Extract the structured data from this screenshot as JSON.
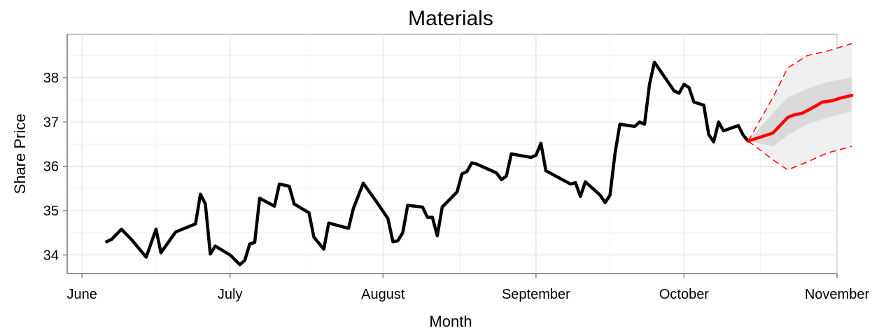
{
  "chart_data": {
    "type": "line",
    "title": "Materials",
    "xlabel": "Month",
    "ylabel": "Share Price",
    "x_axis": {
      "type": "date",
      "range": [
        "2024-05-29",
        "2024-11-01"
      ],
      "ticks": [
        {
          "date": "2024-06-01",
          "label": "June"
        },
        {
          "date": "2024-07-01",
          "label": "July"
        },
        {
          "date": "2024-08-01",
          "label": "August"
        },
        {
          "date": "2024-09-01",
          "label": "September"
        },
        {
          "date": "2024-10-01",
          "label": "October"
        },
        {
          "date": "2024-11-01",
          "label": "November"
        }
      ]
    },
    "y_axis": {
      "range": [
        33.58,
        38.98
      ],
      "ticks": [
        34,
        35,
        36,
        37,
        38
      ]
    },
    "grid": true,
    "colors": {
      "history": "#000000",
      "forecast": "#ff0000",
      "inner_band": "#d9d9d9",
      "outer_band": "#efefef"
    },
    "series": [
      {
        "role": "history",
        "points": [
          [
            "2024-06-06",
            34.3
          ],
          [
            "2024-06-07",
            34.35
          ],
          [
            "2024-06-09",
            34.58
          ],
          [
            "2024-06-11",
            34.35
          ],
          [
            "2024-06-14",
            33.95
          ],
          [
            "2024-06-16",
            34.58
          ],
          [
            "2024-06-17",
            34.05
          ],
          [
            "2024-06-20",
            34.52
          ],
          [
            "2024-06-24",
            34.7
          ],
          [
            "2024-06-25",
            35.37
          ],
          [
            "2024-06-26",
            35.15
          ],
          [
            "2024-06-27",
            34.02
          ],
          [
            "2024-06-28",
            34.2
          ],
          [
            "2024-07-01",
            34.0
          ],
          [
            "2024-07-03",
            33.78
          ],
          [
            "2024-07-04",
            33.88
          ],
          [
            "2024-07-05",
            34.25
          ],
          [
            "2024-07-06",
            34.28
          ],
          [
            "2024-07-07",
            35.28
          ],
          [
            "2024-07-10",
            35.1
          ],
          [
            "2024-07-11",
            35.6
          ],
          [
            "2024-07-13",
            35.55
          ],
          [
            "2024-07-14",
            35.15
          ],
          [
            "2024-07-17",
            34.95
          ],
          [
            "2024-07-18",
            34.4
          ],
          [
            "2024-07-20",
            34.13
          ],
          [
            "2024-07-21",
            34.72
          ],
          [
            "2024-07-25",
            34.6
          ],
          [
            "2024-07-26",
            35.05
          ],
          [
            "2024-07-28",
            35.62
          ],
          [
            "2024-07-31",
            35.15
          ],
          [
            "2024-08-02",
            34.82
          ],
          [
            "2024-08-03",
            34.3
          ],
          [
            "2024-08-04",
            34.32
          ],
          [
            "2024-08-05",
            34.5
          ],
          [
            "2024-08-06",
            35.12
          ],
          [
            "2024-08-09",
            35.08
          ],
          [
            "2024-08-10",
            34.85
          ],
          [
            "2024-08-11",
            34.85
          ],
          [
            "2024-08-12",
            34.43
          ],
          [
            "2024-08-13",
            35.08
          ],
          [
            "2024-08-16",
            35.42
          ],
          [
            "2024-08-17",
            35.83
          ],
          [
            "2024-08-18",
            35.88
          ],
          [
            "2024-08-19",
            36.08
          ],
          [
            "2024-08-20",
            36.05
          ],
          [
            "2024-08-24",
            35.85
          ],
          [
            "2024-08-25",
            35.7
          ],
          [
            "2024-08-26",
            35.78
          ],
          [
            "2024-08-27",
            36.28
          ],
          [
            "2024-08-31",
            36.2
          ],
          [
            "2024-09-01",
            36.25
          ],
          [
            "2024-09-02",
            36.52
          ],
          [
            "2024-09-03",
            35.9
          ],
          [
            "2024-09-08",
            35.6
          ],
          [
            "2024-09-09",
            35.63
          ],
          [
            "2024-09-10",
            35.32
          ],
          [
            "2024-09-11",
            35.65
          ],
          [
            "2024-09-14",
            35.35
          ],
          [
            "2024-09-15",
            35.18
          ],
          [
            "2024-09-16",
            35.35
          ],
          [
            "2024-09-17",
            36.28
          ],
          [
            "2024-09-18",
            36.95
          ],
          [
            "2024-09-21",
            36.9
          ],
          [
            "2024-09-22",
            37.0
          ],
          [
            "2024-09-23",
            36.95
          ],
          [
            "2024-09-24",
            37.85
          ],
          [
            "2024-09-25",
            38.35
          ],
          [
            "2024-09-29",
            37.7
          ],
          [
            "2024-09-30",
            37.65
          ],
          [
            "2024-10-01",
            37.85
          ],
          [
            "2024-10-02",
            37.78
          ],
          [
            "2024-10-03",
            37.45
          ],
          [
            "2024-10-05",
            37.38
          ],
          [
            "2024-10-06",
            36.72
          ],
          [
            "2024-10-07",
            36.55
          ],
          [
            "2024-10-08",
            37.0
          ],
          [
            "2024-10-09",
            36.8
          ],
          [
            "2024-10-12",
            36.92
          ],
          [
            "2024-10-13",
            36.7
          ],
          [
            "2024-10-14",
            36.57
          ]
        ]
      },
      {
        "role": "forecast",
        "points": [
          [
            "2024-10-14",
            36.57
          ],
          [
            "2024-10-19",
            36.75
          ],
          [
            "2024-10-22",
            37.1
          ],
          [
            "2024-10-23",
            37.15
          ],
          [
            "2024-10-25",
            37.2
          ],
          [
            "2024-10-28",
            37.38
          ],
          [
            "2024-10-29",
            37.45
          ],
          [
            "2024-10-31",
            37.48
          ],
          [
            "2024-11-02",
            37.55
          ],
          [
            "2024-11-04",
            37.6
          ]
        ]
      }
    ],
    "forecast_interval": {
      "dates": [
        "2024-10-14",
        "2024-10-19",
        "2024-10-22",
        "2024-10-26",
        "2024-10-30",
        "2024-11-04"
      ],
      "inner_upper": [
        36.57,
        37.2,
        37.55,
        37.75,
        37.9,
        38.0
      ],
      "inner_lower": [
        36.57,
        36.45,
        36.7,
        36.95,
        37.1,
        37.25
      ],
      "outer_upper": [
        36.57,
        37.55,
        38.22,
        38.5,
        38.6,
        38.77
      ],
      "outer_lower": [
        36.57,
        36.15,
        35.92,
        36.1,
        36.3,
        36.45
      ]
    }
  }
}
